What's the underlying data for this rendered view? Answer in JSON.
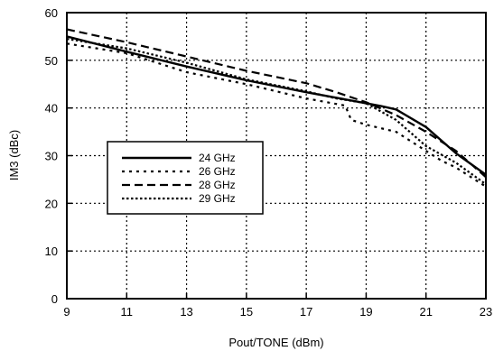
{
  "chart_data": {
    "type": "line",
    "xlabel": "Pout/TONE (dBm)",
    "ylabel": "IM3 (dBc)",
    "xlim": [
      9,
      23
    ],
    "ylim": [
      0,
      60
    ],
    "xticks": [
      9,
      11,
      13,
      15,
      17,
      19,
      21,
      23
    ],
    "yticks": [
      0,
      10,
      20,
      30,
      40,
      50,
      60
    ],
    "grid": true,
    "legend_position": "center-left",
    "series": [
      {
        "name": "24 GHz",
        "dash": "solid",
        "x": [
          9,
          11,
          13,
          15,
          17,
          19,
          19.5,
          20,
          21,
          22,
          23
        ],
        "y": [
          55,
          51.8,
          48.7,
          45.8,
          43.3,
          41,
          40.4,
          39.7,
          36,
          30.5,
          26
        ]
      },
      {
        "name": "26 GHz",
        "dash": "dotted-wide",
        "x": [
          9,
          11,
          13,
          15,
          17,
          18.3,
          18.5,
          19,
          20,
          20.5,
          21,
          21.5,
          22,
          23
        ],
        "y": [
          53.5,
          51.5,
          47.5,
          45,
          42,
          40.5,
          37.5,
          36.5,
          35,
          33,
          31,
          29,
          27.5,
          23.5
        ]
      },
      {
        "name": "28 GHz",
        "dash": "dashed",
        "x": [
          9,
          11,
          13,
          15,
          17,
          18,
          19,
          20,
          21,
          22,
          23
        ],
        "y": [
          56.5,
          53.8,
          50.8,
          47.8,
          45.2,
          43.3,
          41.2,
          38.5,
          35,
          31,
          25.5
        ]
      },
      {
        "name": "29 GHz",
        "dash": "dotted-dense",
        "x": [
          9,
          11,
          13,
          15,
          17,
          18,
          19,
          20,
          21,
          22,
          23
        ],
        "y": [
          54.5,
          52.5,
          49.5,
          46,
          43.5,
          42,
          41,
          37.5,
          32,
          28.5,
          24
        ]
      }
    ]
  }
}
